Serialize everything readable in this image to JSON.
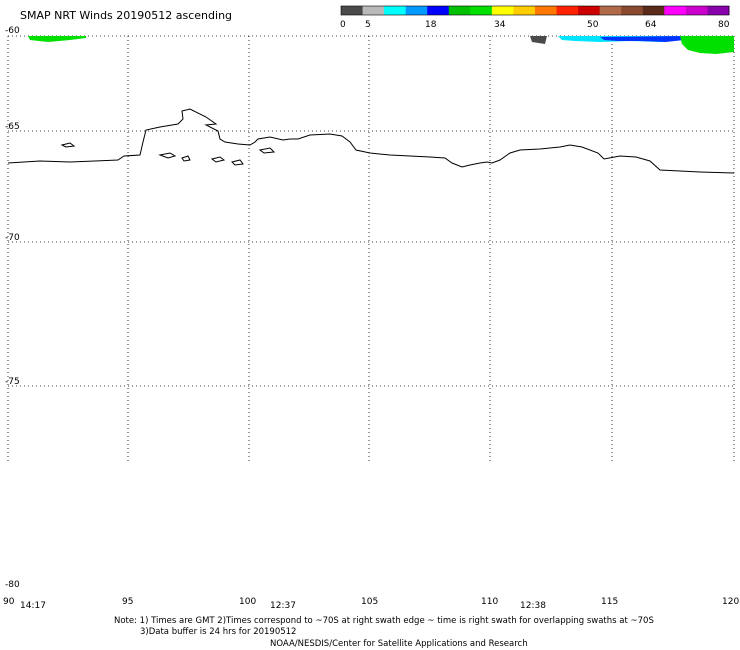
{
  "title": "SMAP NRT Winds 20190512 ascending",
  "colorbar": {
    "labels": [
      "0",
      "5",
      "18",
      "34",
      "50",
      "64",
      "80"
    ],
    "segment_colors": [
      "#4a4a4a",
      "#b9b9b9",
      "#00ffff",
      "#0099ff",
      "#0000ff",
      "#00c000",
      "#00e000",
      "#ffff00",
      "#ffcc00",
      "#ff7700",
      "#ff2200",
      "#cc0000",
      "#b06a4a",
      "#8a4a30",
      "#5a2a1a",
      "#ff00ff",
      "#cc00cc",
      "#8800aa"
    ]
  },
  "map": {
    "lat_labels": [
      "-60",
      "-65",
      "-70",
      "-75",
      "-80"
    ],
    "lon_labels": [
      "90",
      "95",
      "100",
      "105",
      "110",
      "115",
      "120"
    ],
    "swath_times": [
      "14:17",
      "12:37",
      "12:38"
    ],
    "swath_colors": {
      "calm": "#4a4a4a",
      "light": "#00e5ff",
      "moderate": "#0033ff",
      "strong": "#00e000"
    }
  },
  "notes": {
    "line1": "Note: 1) Times are GMT 2)Times correspond to ~70S at right swath edge ~ time is right swath for overlapping swaths at ~70S",
    "line2": "3)Data buffer is 24 hrs for 20190512",
    "credit": "NOAA/NESDIS/Center for Satellite Applications and Research"
  }
}
